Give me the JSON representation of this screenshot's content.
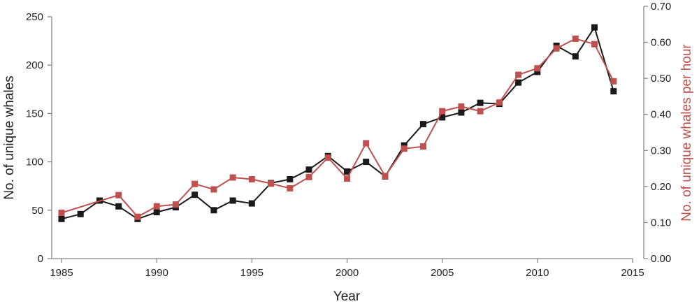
{
  "chart_data": {
    "type": "line",
    "title": "",
    "xlabel": "Year",
    "ylabel_left": "No. of unique whales",
    "ylabel_right": "No. of unique whales per hour",
    "xlim": [
      1985,
      2015
    ],
    "x_ticks": [
      "1985",
      "1990",
      "1995",
      "2000",
      "2005",
      "2010",
      "2015"
    ],
    "ylim_left": [
      0,
      250
    ],
    "y_ticks_left": [
      "0",
      "50",
      "100",
      "150",
      "200",
      "250"
    ],
    "ylim_right": [
      0,
      0.7
    ],
    "y_ticks_right": [
      "0.00",
      "0.10",
      "0.20",
      "0.30",
      "0.40",
      "0.50",
      "0.60",
      "0.70"
    ],
    "grid": false,
    "legend": "none",
    "series": [
      {
        "axis": "left",
        "color": "#1a1a1a",
        "marker": "square",
        "points": [
          [
            1985,
            41
          ],
          [
            1986,
            46
          ],
          [
            1987,
            60
          ],
          [
            1988,
            54
          ],
          [
            1989,
            41
          ],
          [
            1990,
            48
          ],
          [
            1991,
            53
          ],
          [
            1992,
            66
          ],
          [
            1993,
            50
          ],
          [
            1994,
            60
          ],
          [
            1995,
            57
          ],
          [
            1996,
            78
          ],
          [
            1997,
            82
          ],
          [
            1998,
            92
          ],
          [
            1999,
            106
          ],
          [
            2000,
            90
          ],
          [
            2001,
            100
          ],
          [
            2002,
            85
          ],
          [
            2003,
            117
          ],
          [
            2004,
            139
          ],
          [
            2005,
            146
          ],
          [
            2006,
            151
          ],
          [
            2007,
            161
          ],
          [
            2008,
            160
          ],
          [
            2009,
            182
          ],
          [
            2010,
            193
          ],
          [
            2011,
            220
          ],
          [
            2012,
            209
          ],
          [
            2013,
            239
          ],
          [
            2014,
            173
          ]
        ]
      },
      {
        "axis": "right",
        "color": "#c0504d",
        "marker": "square",
        "points": [
          [
            1985,
            0.127
          ],
          [
            1988,
            0.176
          ],
          [
            1989,
            0.116
          ],
          [
            1990,
            0.145
          ],
          [
            1991,
            0.15
          ],
          [
            1992,
            0.207
          ],
          [
            1993,
            0.192
          ],
          [
            1994,
            0.225
          ],
          [
            1995,
            0.22
          ],
          [
            1996,
            0.208
          ],
          [
            1997,
            0.195
          ],
          [
            1998,
            0.226
          ],
          [
            1999,
            0.28
          ],
          [
            2000,
            0.222
          ],
          [
            2001,
            0.32
          ],
          [
            2002,
            0.229
          ],
          [
            2003,
            0.305
          ],
          [
            2004,
            0.311
          ],
          [
            2005,
            0.409
          ],
          [
            2006,
            0.422
          ],
          [
            2007,
            0.409
          ],
          [
            2008,
            0.433
          ],
          [
            2009,
            0.51
          ],
          [
            2010,
            0.528
          ],
          [
            2011,
            0.583
          ],
          [
            2012,
            0.61
          ],
          [
            2013,
            0.595
          ],
          [
            2014,
            0.492
          ]
        ]
      }
    ]
  }
}
